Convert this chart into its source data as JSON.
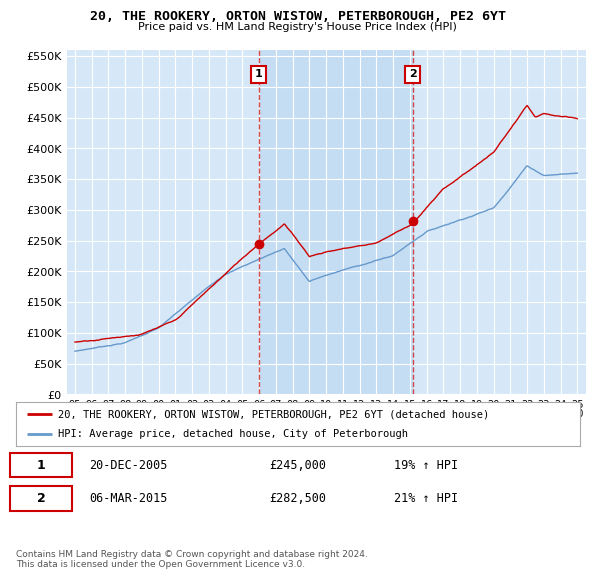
{
  "title": "20, THE ROOKERY, ORTON WISTOW, PETERBOROUGH, PE2 6YT",
  "subtitle": "Price paid vs. HM Land Registry's House Price Index (HPI)",
  "ylabel_ticks": [
    "£0",
    "£50K",
    "£100K",
    "£150K",
    "£200K",
    "£250K",
    "£300K",
    "£350K",
    "£400K",
    "£450K",
    "£500K",
    "£550K"
  ],
  "ytick_values": [
    0,
    50000,
    100000,
    150000,
    200000,
    250000,
    300000,
    350000,
    400000,
    450000,
    500000,
    550000
  ],
  "x_start_year": 1995,
  "x_end_year": 2025,
  "bg_color": "#d6e8f7",
  "highlight_color": "#c5ddf2",
  "line1_color": "#cc0000",
  "line2_color": "#6699cc",
  "legend_label1": "20, THE ROOKERY, ORTON WISTOW, PETERBOROUGH, PE2 6YT (detached house)",
  "legend_label2": "HPI: Average price, detached house, City of Peterborough",
  "marker1_date": 2005.97,
  "marker1_value": 245000,
  "marker1_label": "1",
  "marker2_date": 2015.17,
  "marker2_value": 282500,
  "marker2_label": "2",
  "sale1_date": "20-DEC-2005",
  "sale1_price": "£245,000",
  "sale1_hpi": "19% ↑ HPI",
  "sale2_date": "06-MAR-2015",
  "sale2_price": "£282,500",
  "sale2_hpi": "21% ↑ HPI",
  "footer_text": "Contains HM Land Registry data © Crown copyright and database right 2024.\nThis data is licensed under the Open Government Licence v3.0.",
  "vline1_x": 2005.97,
  "vline2_x": 2015.17,
  "ylim_max": 560000,
  "xlim_min": 1994.5,
  "xlim_max": 2025.5
}
